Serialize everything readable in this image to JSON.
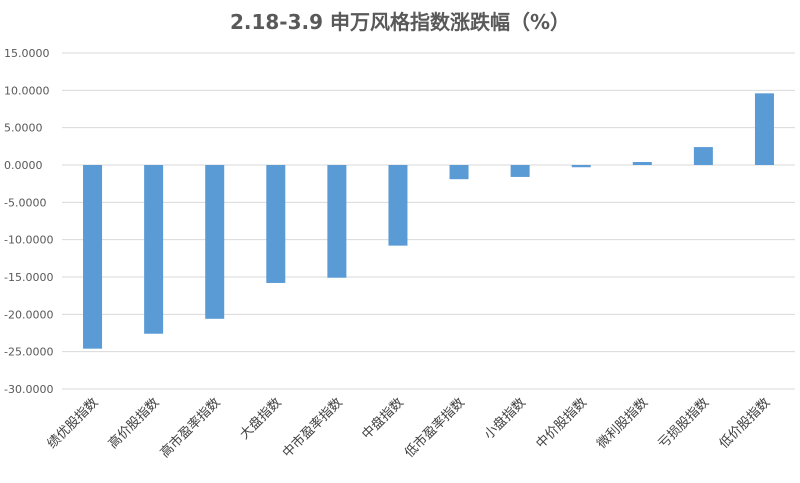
{
  "chart_data": {
    "type": "bar",
    "title": "2.18-3.9 申万风格指数涨跌幅（%）",
    "xlabel": "",
    "ylabel": "",
    "ylim": [
      -30,
      15
    ],
    "yticks": [
      15,
      10,
      5,
      0,
      -5,
      -10,
      -15,
      -20,
      -25,
      -30
    ],
    "ytick_labels": [
      "15.0000",
      "10.0000",
      "5.0000",
      "0.0000",
      "-5.0000",
      "-10.0000",
      "-15.0000",
      "-20.0000",
      "-25.0000",
      "-30.0000"
    ],
    "categories": [
      "绩优股指数",
      "高价股指数",
      "高市盈率指数",
      "大盘指数",
      "中市盈率指数",
      "中盘指数",
      "低市盈率指数",
      "小盘指数",
      "中价股指数",
      "微利股指数",
      "亏损股指数",
      "低价股指数"
    ],
    "values": [
      -24.6,
      -22.6,
      -20.6,
      -15.8,
      -15.1,
      -10.8,
      -1.9,
      -1.6,
      -0.3,
      0.4,
      2.4,
      9.6
    ],
    "bar_color": "#5b9bd5",
    "grid": true,
    "legend": "none"
  }
}
